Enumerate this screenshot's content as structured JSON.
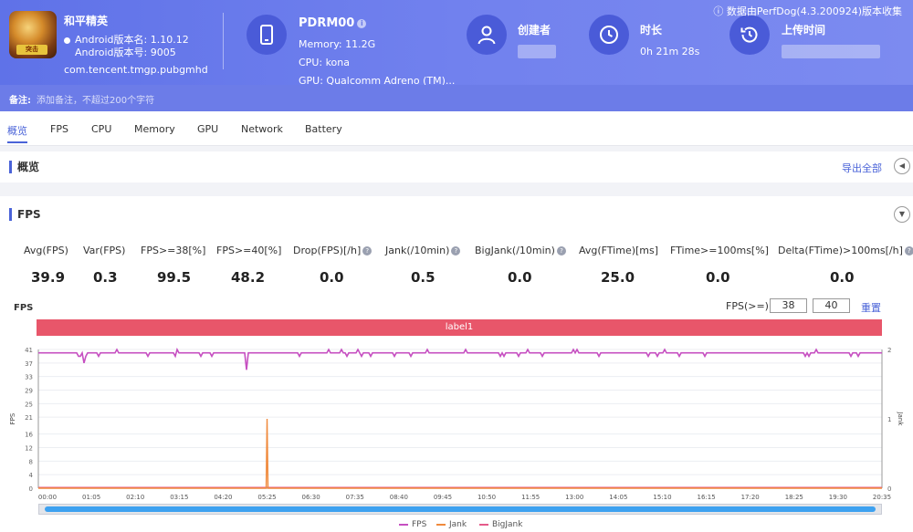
{
  "header": {
    "app_name": "和平精英",
    "android_version_name": "Android版本名: 1.10.12",
    "android_version_code": "Android版本号: 9005",
    "package": "com.tencent.tmgp.pubgmhd",
    "app_badge": "突击",
    "device_name": "PDRM00",
    "memory": "Memory: 11.2G",
    "cpu": "CPU: kona",
    "gpu": "GPU: Qualcomm Adreno (TM)...",
    "creator_label": "创建者",
    "duration_label": "时长",
    "duration_value": "0h 21m 28s",
    "upload_label": "上传时间",
    "notice": "ⓘ 数据由PerfDog(4.3.200924)版本收集"
  },
  "note": {
    "label": "备注:",
    "placeholder": "添加备注，不超过200个字符"
  },
  "tabs": [
    "概览",
    "FPS",
    "CPU",
    "Memory",
    "GPU",
    "Network",
    "Battery"
  ],
  "overview": {
    "title": "概览",
    "export": "导出全部"
  },
  "fps_section": {
    "title": "FPS",
    "stats": [
      {
        "label": "Avg(FPS)",
        "value": "39.9",
        "help": false
      },
      {
        "label": "Var(FPS)",
        "value": "0.3",
        "help": false
      },
      {
        "label": "FPS>=38[%]",
        "value": "99.5",
        "help": false
      },
      {
        "label": "FPS>=40[%]",
        "value": "48.2",
        "help": false
      },
      {
        "label": "Drop(FPS)[/h]",
        "value": "0.0",
        "help": true
      },
      {
        "label": "Jank(/10min)",
        "value": "0.5",
        "help": true
      },
      {
        "label": "BigJank(/10min)",
        "value": "0.0",
        "help": true
      },
      {
        "label": "Avg(FTime)[ms]",
        "value": "25.0",
        "help": false
      },
      {
        "label": "FTime>=100ms[%]",
        "value": "0.0",
        "help": false
      },
      {
        "label": "Delta(FTime)>100ms[/h]",
        "value": "0.0",
        "help": true
      }
    ],
    "chart_title": "FPS",
    "threshold_label": "FPS(>=)",
    "threshold_1": "38",
    "threshold_2": "40",
    "reset": "重置",
    "label_bar": "label1"
  },
  "chart_data": {
    "type": "line",
    "x_ticks": [
      "00:00",
      "01:05",
      "02:10",
      "03:15",
      "04:20",
      "05:25",
      "06:30",
      "07:35",
      "08:40",
      "09:45",
      "10:50",
      "11:55",
      "13:00",
      "14:05",
      "15:10",
      "16:15",
      "17:20",
      "18:25",
      "19:30",
      "20:35"
    ],
    "y_left_ticks": [
      "0",
      "4",
      "8",
      "12",
      "16",
      "21",
      "25",
      "29",
      "33",
      "37",
      "41"
    ],
    "y_right_ticks": [
      "0",
      "1",
      "2"
    ],
    "ylabel_left": "FPS",
    "ylabel_right": "Jank",
    "ylim_left": [
      0,
      41
    ],
    "ylim_right": [
      0,
      2
    ],
    "series": [
      {
        "name": "FPS",
        "color": "#c64fc1",
        "description_values": {
          "baseline": 40,
          "dips_to": [
            38,
            37,
            35
          ]
        }
      },
      {
        "name": "Jank",
        "color": "#f08a3c",
        "spike_at": "05:25",
        "spike_value": 1
      },
      {
        "name": "BigJank",
        "color": "#e55b8a",
        "values_constant": 0
      }
    ]
  },
  "legend": [
    "FPS",
    "Jank",
    "BigJank"
  ]
}
